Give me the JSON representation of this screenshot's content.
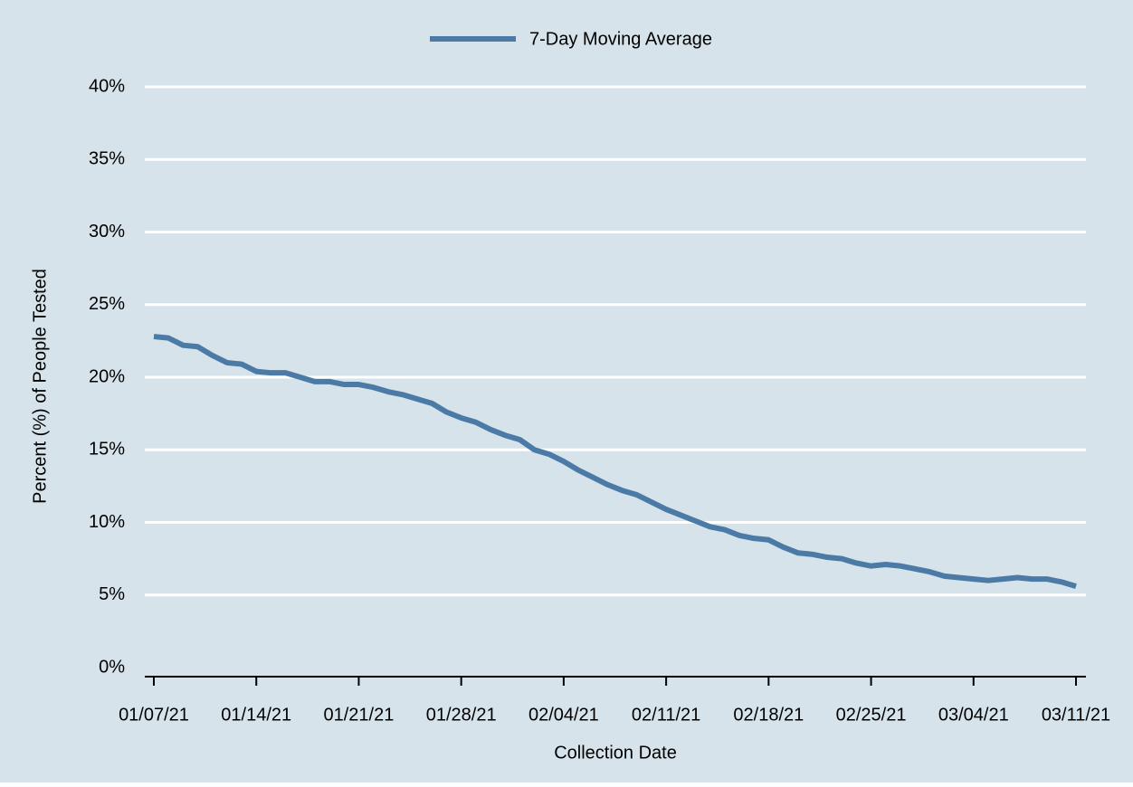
{
  "chart_data": {
    "type": "line",
    "x_label": "Collection Date",
    "y_label": "Percent (%) of People Tested",
    "x": [
      "01/07/21",
      "01/08/21",
      "01/09/21",
      "01/10/21",
      "01/11/21",
      "01/12/21",
      "01/13/21",
      "01/14/21",
      "01/15/21",
      "01/16/21",
      "01/17/21",
      "01/18/21",
      "01/19/21",
      "01/20/21",
      "01/21/21",
      "01/22/21",
      "01/23/21",
      "01/24/21",
      "01/25/21",
      "01/26/21",
      "01/27/21",
      "01/28/21",
      "01/29/21",
      "01/30/21",
      "01/31/21",
      "02/01/21",
      "02/02/21",
      "02/03/21",
      "02/04/21",
      "02/05/21",
      "02/06/21",
      "02/07/21",
      "02/08/21",
      "02/09/21",
      "02/10/21",
      "02/11/21",
      "02/12/21",
      "02/13/21",
      "02/14/21",
      "02/15/21",
      "02/16/21",
      "02/17/21",
      "02/18/21",
      "02/19/21",
      "02/20/21",
      "02/21/21",
      "02/22/21",
      "02/23/21",
      "02/24/21",
      "02/25/21",
      "02/26/21",
      "02/27/21",
      "02/28/21",
      "03/01/21",
      "03/02/21",
      "03/03/21",
      "03/04/21",
      "03/05/21",
      "03/06/21",
      "03/07/21",
      "03/08/21",
      "03/09/21",
      "03/10/21",
      "03/11/21"
    ],
    "series": [
      {
        "name": "7-Day Moving Average",
        "color": "#4a7aa5",
        "values": [
          22.8,
          22.7,
          22.2,
          22.1,
          21.5,
          21.0,
          20.9,
          20.4,
          20.3,
          20.3,
          20.0,
          19.7,
          19.7,
          19.5,
          19.5,
          19.3,
          19.0,
          18.8,
          18.5,
          18.2,
          17.6,
          17.2,
          16.9,
          16.4,
          16.0,
          15.7,
          15.0,
          14.7,
          14.2,
          13.6,
          13.1,
          12.6,
          12.2,
          11.9,
          11.4,
          10.9,
          10.5,
          10.1,
          9.7,
          9.5,
          9.1,
          8.9,
          8.8,
          8.3,
          7.9,
          7.8,
          7.6,
          7.5,
          7.2,
          7.0,
          7.1,
          7.0,
          6.8,
          6.6,
          6.3,
          6.2,
          6.1,
          6.0,
          6.1,
          6.2,
          6.1,
          6.1,
          5.9,
          5.6
        ]
      }
    ],
    "xticks": [
      "01/07/21",
      "01/14/21",
      "01/21/21",
      "01/28/21",
      "02/04/21",
      "02/11/21",
      "02/18/21",
      "02/25/21",
      "03/04/21",
      "03/11/21"
    ],
    "ylim": [
      0,
      40
    ],
    "yticks": [
      {
        "value": 0,
        "label": "0%"
      },
      {
        "value": 5,
        "label": "5%"
      },
      {
        "value": 10,
        "label": "10%"
      },
      {
        "value": 15,
        "label": "15%"
      },
      {
        "value": 20,
        "label": "20%"
      },
      {
        "value": 25,
        "label": "25%"
      },
      {
        "value": 30,
        "label": "30%"
      },
      {
        "value": 35,
        "label": "35%"
      },
      {
        "value": 40,
        "label": "40%"
      }
    ],
    "grid": true,
    "legend": "top"
  }
}
